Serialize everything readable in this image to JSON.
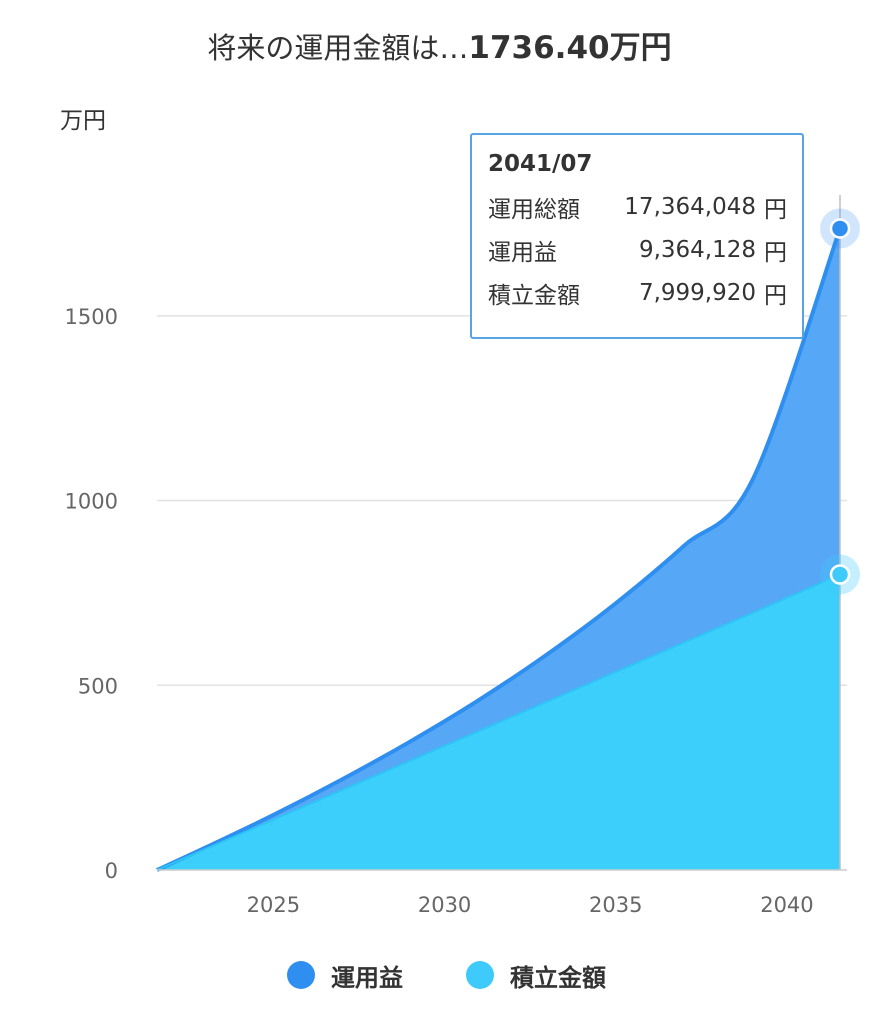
{
  "header": {
    "title_prefix": "将来の運用金額は…",
    "title_amount": "1736.40万円"
  },
  "colors": {
    "profit": "#2e8ff0",
    "contribution": "#3ecbfb",
    "profit_fill": "#56a8f7",
    "contribution_fill": "#3ccffb",
    "grid": "#e2e2e2"
  },
  "tooltip": {
    "date": "2041/07",
    "rows": [
      {
        "label": "運用総額",
        "value": "17,364,048",
        "unit": "円"
      },
      {
        "label": "運用益",
        "value": "9,364,128",
        "unit": "円"
      },
      {
        "label": "積立金額",
        "value": "7,999,920",
        "unit": "円"
      }
    ]
  },
  "chart_data": {
    "type": "area",
    "ylabel": "万円",
    "ylim": [
      0,
      1800
    ],
    "yticks": [
      0,
      500,
      1000,
      1500
    ],
    "xlim": [
      2021.6,
      2041.55
    ],
    "xticks": [
      2025,
      2030,
      2035,
      2040
    ],
    "x": [
      2021.6,
      2023,
      2025,
      2027,
      2029,
      2031,
      2033,
      2035,
      2037,
      2039,
      2041.55
    ],
    "series": [
      {
        "name": "運用益",
        "values": [
          0,
          4,
          13,
          29,
          52,
          84,
          128,
          186,
          262,
          361,
          936.4
        ]
      },
      {
        "name": "積立金額",
        "values": [
          0,
          56,
          136,
          216,
          296,
          376,
          456,
          536,
          616,
          696,
          800.0
        ]
      }
    ],
    "highlight": {
      "x": 2041.55,
      "total": 1736.4,
      "contribution": 800.0
    },
    "legend_position": "bottom-center",
    "grid": true
  }
}
